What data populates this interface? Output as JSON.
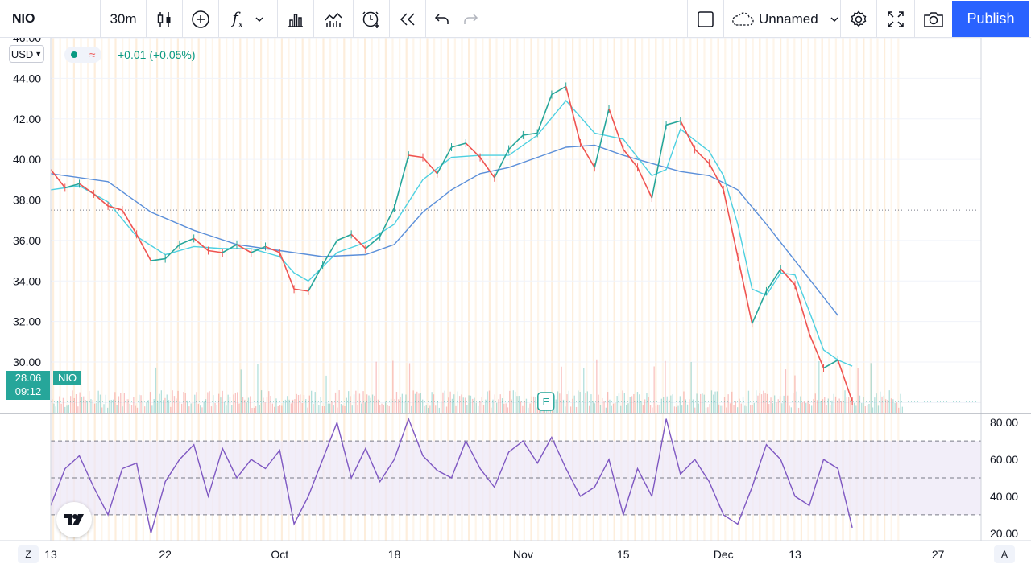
{
  "toolbar": {
    "symbol": "NIO",
    "interval": "30m",
    "layout_name": "Unnamed",
    "publish_label": "Publish",
    "icons": [
      "candles-icon",
      "add-compare-icon",
      "indicators-icon",
      "chevron-down-icon",
      "bar-chart-icon",
      "templates-icon",
      "alert-icon",
      "replay-icon",
      "undo-icon",
      "redo-icon",
      "select-box-icon",
      "cloud-icon",
      "settings-icon",
      "fullscreen-icon",
      "camera-icon"
    ]
  },
  "legend": {
    "currency": "USD",
    "change_text": "+0.01 (+0.05%)"
  },
  "price_tag": {
    "price": "28.06",
    "time": "09:12",
    "symbol": "NIO"
  },
  "earnings_marker": "E",
  "buttons": {
    "z": "Z",
    "a": "A"
  },
  "colors": {
    "up": "#26a69a",
    "down": "#ef5350",
    "ma_fast": "#4dd0e1",
    "ma_slow": "#5b8fd9",
    "rsi_line": "#7e57c2",
    "rsi_band": "#ede7f6",
    "session_stripe": "#fdecd8",
    "accent": "#2962ff"
  },
  "chart_data": [
    {
      "type": "line",
      "title": "NIO",
      "interval": "30m",
      "grid": true,
      "y_ticks": [
        "46.00",
        "44.00",
        "42.00",
        "40.00",
        "38.00",
        "36.00",
        "34.00",
        "32.00",
        "30.00",
        "28.00"
      ],
      "ylim": [
        27.5,
        46.0
      ],
      "x_ticks": [
        "13",
        "22",
        "Oct",
        "18",
        "Nov",
        "15",
        "Dec",
        "13",
        "27"
      ],
      "last_price": 28.06,
      "reference_line": 37.5,
      "series": [
        {
          "name": "NIO",
          "x": [
            "13",
            "22",
            "Oct",
            "18",
            "Nov",
            "15",
            "Dec",
            "13"
          ],
          "x_pos": [
            0,
            8,
            16,
            24,
            33,
            40,
            47,
            52
          ],
          "points": [
            [
              0,
              39.5
            ],
            [
              1,
              38.6
            ],
            [
              2,
              38.8
            ],
            [
              3,
              38.3
            ],
            [
              4,
              37.7
            ],
            [
              5,
              37.5
            ],
            [
              6,
              36.3
            ],
            [
              7,
              35.0
            ],
            [
              8,
              35.1
            ],
            [
              9,
              35.8
            ],
            [
              10,
              36.1
            ],
            [
              11,
              35.5
            ],
            [
              12,
              35.4
            ],
            [
              13,
              35.8
            ],
            [
              14,
              35.4
            ],
            [
              15,
              35.7
            ],
            [
              16,
              35.4
            ],
            [
              17,
              33.6
            ],
            [
              18,
              33.5
            ],
            [
              19,
              34.8
            ],
            [
              20,
              36.0
            ],
            [
              21,
              36.3
            ],
            [
              22,
              35.6
            ],
            [
              23,
              36.2
            ],
            [
              24,
              37.6
            ],
            [
              25,
              40.2
            ],
            [
              26,
              40.1
            ],
            [
              27,
              39.3
            ],
            [
              28,
              40.6
            ],
            [
              29,
              40.8
            ],
            [
              30,
              40.1
            ],
            [
              31,
              39.1
            ],
            [
              32,
              40.5
            ],
            [
              33,
              41.2
            ],
            [
              34,
              41.3
            ],
            [
              35,
              43.2
            ],
            [
              36,
              43.6
            ],
            [
              37,
              40.8
            ],
            [
              38,
              39.6
            ],
            [
              39,
              42.5
            ],
            [
              40,
              40.5
            ],
            [
              41,
              39.6
            ],
            [
              42,
              38.1
            ],
            [
              43,
              41.7
            ],
            [
              44,
              41.9
            ],
            [
              45,
              40.5
            ],
            [
              46,
              39.8
            ],
            [
              47,
              38.5
            ],
            [
              48,
              35.2
            ],
            [
              49,
              31.9
            ],
            [
              50,
              33.5
            ],
            [
              51,
              34.6
            ],
            [
              52,
              33.8
            ],
            [
              53,
              31.4
            ],
            [
              54,
              29.7
            ],
            [
              55,
              30.1
            ],
            [
              56,
              28.06
            ]
          ]
        },
        {
          "name": "MA fast",
          "points": [
            [
              0,
              38.5
            ],
            [
              2,
              38.7
            ],
            [
              4,
              37.9
            ],
            [
              6,
              36.2
            ],
            [
              8,
              35.3
            ],
            [
              10,
              35.7
            ],
            [
              12,
              35.6
            ],
            [
              14,
              35.6
            ],
            [
              16,
              35.2
            ],
            [
              17,
              34.4
            ],
            [
              18,
              34.0
            ],
            [
              20,
              35.4
            ],
            [
              22,
              35.9
            ],
            [
              24,
              36.8
            ],
            [
              26,
              39.0
            ],
            [
              28,
              40.1
            ],
            [
              30,
              40.2
            ],
            [
              32,
              40.2
            ],
            [
              34,
              41.2
            ],
            [
              36,
              42.9
            ],
            [
              38,
              41.3
            ],
            [
              40,
              41.0
            ],
            [
              42,
              39.2
            ],
            [
              43,
              39.5
            ],
            [
              44,
              41.5
            ],
            [
              46,
              40.4
            ],
            [
              47,
              39.2
            ],
            [
              48,
              36.8
            ],
            [
              49,
              33.6
            ],
            [
              50,
              33.3
            ],
            [
              51,
              34.4
            ],
            [
              52,
              34.3
            ],
            [
              53,
              32.5
            ],
            [
              54,
              30.6
            ],
            [
              55,
              30.1
            ],
            [
              56,
              29.8
            ]
          ]
        },
        {
          "name": "MA slow",
          "points": [
            [
              0,
              39.3
            ],
            [
              4,
              38.9
            ],
            [
              7,
              37.4
            ],
            [
              10,
              36.5
            ],
            [
              13,
              35.8
            ],
            [
              16,
              35.5
            ],
            [
              19,
              35.2
            ],
            [
              22,
              35.3
            ],
            [
              24,
              35.8
            ],
            [
              26,
              37.4
            ],
            [
              28,
              38.5
            ],
            [
              30,
              39.3
            ],
            [
              32,
              39.6
            ],
            [
              34,
              40.1
            ],
            [
              36,
              40.6
            ],
            [
              38,
              40.7
            ],
            [
              40,
              40.2
            ],
            [
              42,
              39.8
            ],
            [
              44,
              39.4
            ],
            [
              46,
              39.2
            ],
            [
              48,
              38.5
            ],
            [
              50,
              36.8
            ],
            [
              52,
              35.0
            ],
            [
              54,
              33.2
            ],
            [
              55,
              32.3
            ]
          ]
        }
      ]
    },
    {
      "type": "line",
      "title": "RSI",
      "y_ticks": [
        "80.00",
        "60.00",
        "40.00",
        "20.00"
      ],
      "ylim": [
        16,
        84
      ],
      "bands": [
        30,
        50,
        70
      ],
      "series": [
        {
          "name": "RSI",
          "points": [
            [
              0,
              35
            ],
            [
              1,
              55
            ],
            [
              2,
              62
            ],
            [
              3,
              45
            ],
            [
              4,
              30
            ],
            [
              5,
              55
            ],
            [
              6,
              58
            ],
            [
              7,
              20
            ],
            [
              8,
              48
            ],
            [
              9,
              60
            ],
            [
              10,
              68
            ],
            [
              11,
              40
            ],
            [
              12,
              66
            ],
            [
              13,
              50
            ],
            [
              14,
              60
            ],
            [
              15,
              55
            ],
            [
              16,
              65
            ],
            [
              17,
              25
            ],
            [
              18,
              40
            ],
            [
              19,
              60
            ],
            [
              20,
              80
            ],
            [
              21,
              50
            ],
            [
              22,
              66
            ],
            [
              23,
              48
            ],
            [
              24,
              60
            ],
            [
              25,
              82
            ],
            [
              26,
              62
            ],
            [
              27,
              54
            ],
            [
              28,
              50
            ],
            [
              29,
              70
            ],
            [
              30,
              55
            ],
            [
              31,
              45
            ],
            [
              32,
              64
            ],
            [
              33,
              70
            ],
            [
              34,
              58
            ],
            [
              35,
              72
            ],
            [
              36,
              55
            ],
            [
              37,
              40
            ],
            [
              38,
              45
            ],
            [
              39,
              60
            ],
            [
              40,
              30
            ],
            [
              41,
              55
            ],
            [
              42,
              40
            ],
            [
              43,
              82
            ],
            [
              44,
              52
            ],
            [
              45,
              60
            ],
            [
              46,
              48
            ],
            [
              47,
              30
            ],
            [
              48,
              25
            ],
            [
              49,
              45
            ],
            [
              50,
              68
            ],
            [
              51,
              60
            ],
            [
              52,
              40
            ],
            [
              53,
              35
            ],
            [
              54,
              60
            ],
            [
              55,
              55
            ],
            [
              56,
              23
            ]
          ]
        }
      ]
    }
  ]
}
